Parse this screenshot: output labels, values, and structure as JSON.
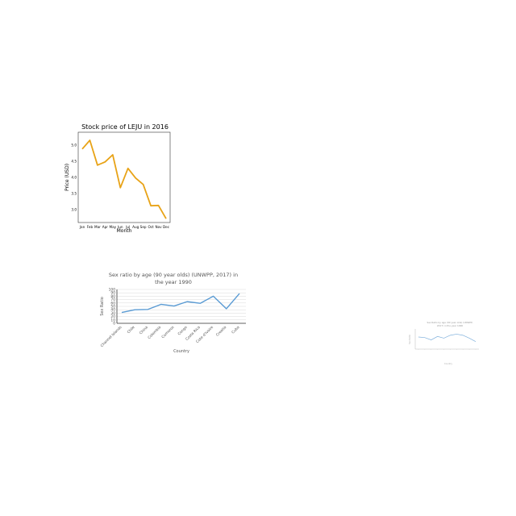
{
  "chart_data": [
    {
      "type": "line",
      "title": "Stock price of LEJU in 2016",
      "xlabel": "Month",
      "ylabel": "Price (USD)",
      "categories": [
        "Jan",
        "Feb",
        "Mar",
        "Apr",
        "May",
        "Jun",
        "Jul",
        "Aug",
        "Sep",
        "Oct",
        "Nov",
        "Dec"
      ],
      "ticks": [
        "3.0",
        "3.5",
        "4.0",
        "4.5",
        "5.0"
      ],
      "ylim": [
        2.65,
        5.35
      ],
      "series": [
        {
          "values": [
            4.88,
            5.15,
            4.38,
            4.48,
            4.7,
            3.68,
            4.28,
            3.98,
            3.78,
            3.12,
            3.13,
            2.72
          ],
          "color": "#e8a317"
        }
      ],
      "grid": false,
      "legend": "none"
    },
    {
      "type": "line",
      "title": "Sex ratio by age (90 year olds) (UNWPP, 2017) in",
      "subtitle": "the year 1990",
      "xlabel": "Country",
      "ylabel": "Sex Ratio",
      "categories": [
        "Channel Islands",
        "Chile",
        "China",
        "Colombia",
        "Comoros",
        "Congo",
        "Costa Rica",
        "Cote d'Ivoire",
        "Croatia",
        "Cuba"
      ],
      "ticks": [
        "0",
        "10",
        "20",
        "30",
        "40",
        "50",
        "60",
        "70",
        "80",
        "90",
        "100"
      ],
      "ylim": [
        0,
        100
      ],
      "series": [
        {
          "values": [
            32,
            40,
            41,
            56,
            51,
            64,
            59,
            80,
            43,
            88
          ],
          "color": "#5a9bd4"
        }
      ],
      "grid": true,
      "legend": "none"
    },
    {
      "type": "line",
      "title": "Sex Ratio by age (90 year olds) (UNWPP,",
      "subtitle": "2017) in the year 1990",
      "xlabel": "Country",
      "ylabel": "Sex Ratio",
      "categories": [
        "",
        "",
        "",
        "",
        "",
        "",
        "",
        "",
        "",
        ""
      ],
      "ylim": [
        30,
        100
      ],
      "series": [
        {
          "values": [
            72,
            70,
            62,
            74,
            68,
            78,
            82,
            78,
            68,
            56
          ],
          "color": "#7fb0dc"
        }
      ],
      "grid": false,
      "legend": "none"
    }
  ]
}
